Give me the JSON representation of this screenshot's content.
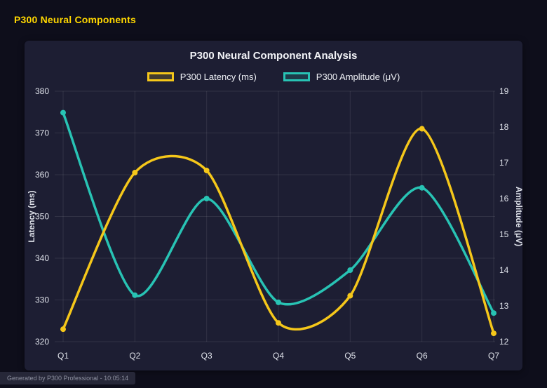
{
  "window": {
    "title": "P300 Neural Components"
  },
  "footer": {
    "text": "Generated by P300 Professional - 10:05:14"
  },
  "colors": {
    "accent_yellow": "#ffd700",
    "background": "#0e0e1b",
    "card": "#1d1e33",
    "latency": "#f5c71a",
    "amplitude": "#28c3b4"
  },
  "chart_data": {
    "type": "line",
    "title": "P300 Neural Component Analysis",
    "categories": [
      "Q1",
      "Q2",
      "Q3",
      "Q4",
      "Q5",
      "Q6",
      "Q7"
    ],
    "series": [
      {
        "name": "P300 Latency (ms)",
        "axis": "left",
        "color": "#f5c71a",
        "values": [
          323,
          360.5,
          361,
          324.5,
          331,
          371,
          322
        ]
      },
      {
        "name": "P300 Amplitude (μV)",
        "axis": "right",
        "color": "#28c3b4",
        "values": [
          18.4,
          13.3,
          16.0,
          13.1,
          14.0,
          16.3,
          12.8
        ]
      }
    ],
    "left_axis": {
      "label": "Latency (ms)",
      "min": 320,
      "max": 380,
      "ticks": [
        380,
        370,
        360,
        350,
        340,
        330,
        320
      ]
    },
    "right_axis": {
      "label": "Amplitude (μV)",
      "min": 12,
      "max": 19,
      "ticks": [
        19,
        18,
        17,
        16,
        15,
        14,
        13,
        12
      ]
    },
    "grid": true,
    "legend_position": "top",
    "curve": "smooth"
  }
}
